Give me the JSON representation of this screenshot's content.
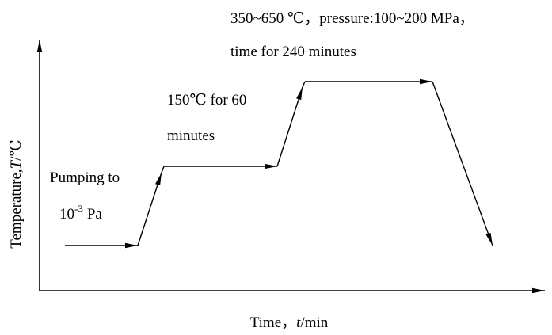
{
  "annotations": {
    "final_stage": [
      "350~650 ℃，pressure:100~200 MPa，",
      "time for 240 minutes"
    ],
    "hold_stage": [
      "150℃ for 60",
      "minutes"
    ],
    "pumping": {
      "line1": "Pumping to",
      "base": "10",
      "exponent": "-3",
      "unit": "Pa"
    }
  },
  "axes": {
    "y_label": {
      "prefix": "Temperature,",
      "symbol": "T",
      "suffix": "/℃"
    },
    "x_label": {
      "prefix": "Time，",
      "symbol": "t",
      "suffix": "/min"
    }
  }
}
